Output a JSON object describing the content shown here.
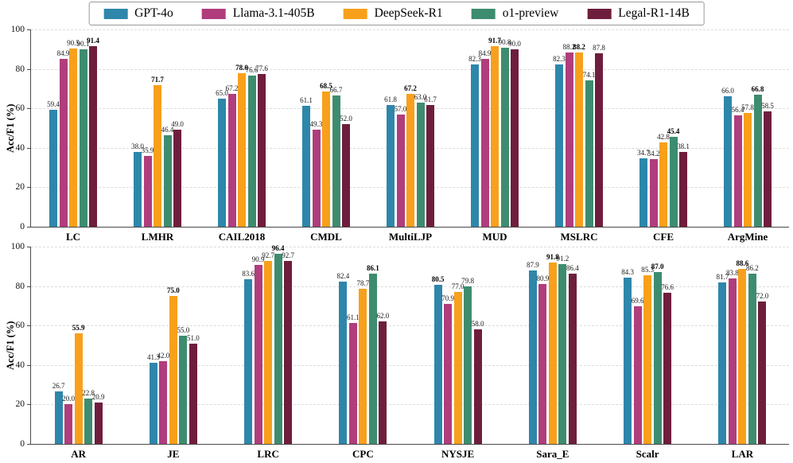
{
  "legend": {
    "items": [
      {
        "label": "GPT-4o",
        "color": "#2E86AB"
      },
      {
        "label": "Llama-3.1-405B",
        "color": "#B03D7C"
      },
      {
        "label": "DeepSeek-R1",
        "color": "#F8A01B"
      },
      {
        "label": "o1-preview",
        "color": "#3E8C6F"
      },
      {
        "label": "Legal-R1-14B",
        "color": "#6E1E3C"
      }
    ]
  },
  "chart_data": [
    {
      "type": "bar",
      "title": "",
      "xlabel": "",
      "ylabel": "Acc/F1 (%)",
      "ylim": [
        0,
        100
      ],
      "yticks": [
        0,
        20,
        40,
        60,
        80,
        100
      ],
      "grid": "horizontal-dashed",
      "legend_position": "top-center-shared",
      "categories": [
        "LC",
        "LMHR",
        "CAIL2018",
        "CMDL",
        "MultiLJP",
        "MUD",
        "MSLRC",
        "CFE",
        "ArgMine"
      ],
      "series": [
        {
          "name": "GPT-4o",
          "color": "#2E86AB",
          "values": [
            59.4,
            38.0,
            65.0,
            61.1,
            61.8,
            82.3,
            82.3,
            34.7,
            66.0
          ]
        },
        {
          "name": "Llama-3.1-405B",
          "color": "#B03D7C",
          "values": [
            84.9,
            35.9,
            67.2,
            49.3,
            57.0,
            84.9,
            88.2,
            34.2,
            56.4
          ]
        },
        {
          "name": "DeepSeek-R1",
          "color": "#F8A01B",
          "values": [
            90.5,
            71.7,
            78.0,
            68.5,
            67.2,
            91.7,
            88.2,
            42.8,
            57.8
          ]
        },
        {
          "name": "o1-preview",
          "color": "#3E8C6F",
          "values": [
            90.1,
            46.4,
            76.6,
            66.7,
            63.0,
            90.8,
            74.1,
            45.4,
            66.8
          ]
        },
        {
          "name": "Legal-R1-14B",
          "color": "#6E1E3C",
          "values": [
            91.4,
            49.0,
            77.6,
            52.0,
            61.7,
            90.0,
            87.8,
            38.1,
            58.5
          ]
        }
      ],
      "bold_max_series_index_per_category": [
        4,
        2,
        2,
        2,
        2,
        2,
        2,
        3,
        3
      ]
    },
    {
      "type": "bar",
      "title": "",
      "xlabel": "",
      "ylabel": "Acc/F1 (%)",
      "ylim": [
        0,
        100
      ],
      "yticks": [
        0,
        20,
        40,
        60,
        80,
        100
      ],
      "grid": "horizontal-dashed",
      "legend_position": "top-center-shared",
      "categories": [
        "AR",
        "JE",
        "LRC",
        "CPC",
        "NYSJE",
        "Sara_E",
        "Scalr",
        "LAR"
      ],
      "series": [
        {
          "name": "GPT-4o",
          "color": "#2E86AB",
          "values": [
            26.7,
            41.3,
            83.6,
            82.4,
            80.5,
            87.9,
            84.3,
            81.7
          ]
        },
        {
          "name": "Llama-3.1-405B",
          "color": "#B03D7C",
          "values": [
            20.0,
            42.0,
            90.9,
            61.1,
            70.9,
            80.9,
            69.6,
            83.8
          ]
        },
        {
          "name": "DeepSeek-R1",
          "color": "#F8A01B",
          "values": [
            55.9,
            75.0,
            92.7,
            78.7,
            77.0,
            91.8,
            85.3,
            88.6
          ]
        },
        {
          "name": "o1-preview",
          "color": "#3E8C6F",
          "values": [
            22.8,
            55.0,
            96.4,
            86.1,
            79.8,
            91.2,
            87.0,
            86.2
          ]
        },
        {
          "name": "Legal-R1-14B",
          "color": "#6E1E3C",
          "values": [
            20.9,
            51.0,
            92.7,
            62.0,
            58.0,
            86.4,
            76.6,
            72.0
          ]
        }
      ],
      "bold_max_series_index_per_category": [
        2,
        2,
        3,
        3,
        0,
        2,
        3,
        2
      ]
    }
  ]
}
